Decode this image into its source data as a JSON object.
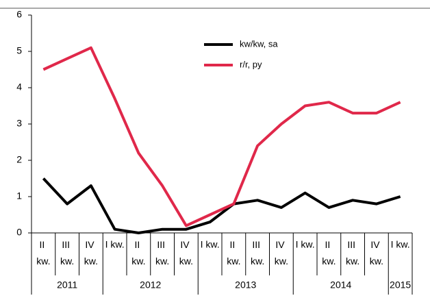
{
  "chart_data": {
    "type": "line",
    "categories": [
      "II kw.",
      "III kw.",
      "IV kw.",
      "I kw.",
      "II kw.",
      "III kw.",
      "IV kw.",
      "I kw.",
      "II kw.",
      "III kw.",
      "IV kw.",
      "I kw.",
      "II kw.",
      "III kw.",
      "IV kw.",
      "I kw."
    ],
    "years": [
      {
        "label": "2011",
        "span": 3
      },
      {
        "label": "2012",
        "span": 4
      },
      {
        "label": "2013",
        "span": 4
      },
      {
        "label": "2014",
        "span": 4
      },
      {
        "label": "2015",
        "span": 1
      }
    ],
    "series": [
      {
        "name": "kw/kw, sa",
        "color": "#000000",
        "values": [
          1.5,
          0.8,
          1.3,
          0.1,
          0.0,
          0.1,
          0.1,
          0.3,
          0.8,
          0.9,
          0.7,
          1.1,
          0.7,
          0.9,
          0.8,
          1.0
        ]
      },
      {
        "name": "r/r, py",
        "color": "#e0284a",
        "values": [
          4.5,
          4.8,
          5.1,
          3.7,
          2.2,
          1.3,
          0.2,
          0.5,
          0.8,
          2.4,
          3.0,
          3.5,
          3.6,
          3.3,
          3.3,
          3.6
        ]
      }
    ],
    "ylim": [
      0,
      6
    ],
    "yticks": [
      0,
      1,
      2,
      3,
      4,
      5,
      6
    ]
  }
}
